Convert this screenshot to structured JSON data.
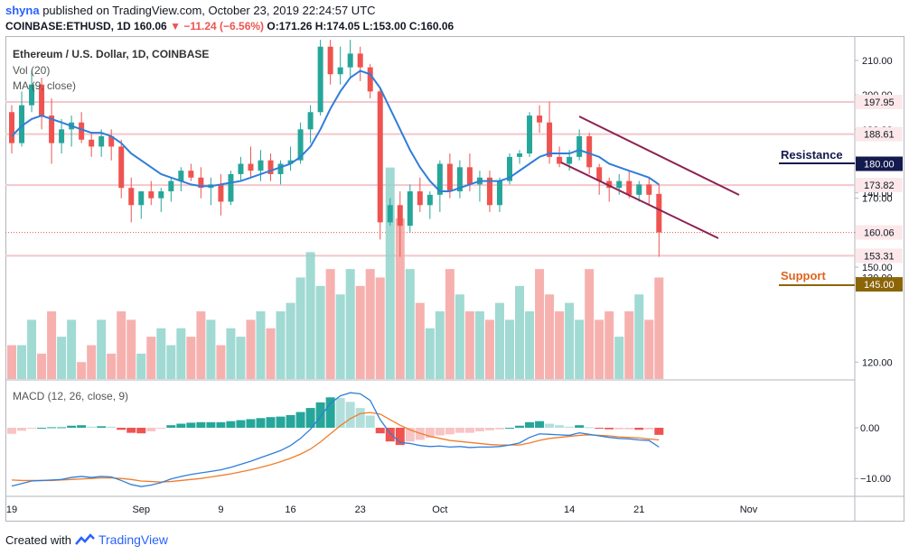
{
  "header": {
    "username": "shyna",
    "published_text": "published on TradingView.com, October 23, 2019 22:24:57 UTC",
    "symbol": "COINBASE:ETHUSD, 1D",
    "last": "160.06",
    "change": "−11.24 (−6.56%)",
    "ohlc": "O:171.26 H:174.05 L:153.00 C:160.06"
  },
  "legends": {
    "title": "Ethereum / U.S. Dollar, 1D, COINBASE",
    "vol": "Vol (20)",
    "ma": "MA (9, close)",
    "macd": "MACD (12, 26, close, 9)"
  },
  "annotations": {
    "resistance": "Resistance",
    "support": "Support"
  },
  "footer": {
    "created_with": "Created with",
    "brand": "TradingView"
  },
  "colors": {
    "up": "#26a69a",
    "down": "#ef5350",
    "ma": "#2f7ed8",
    "signal": "#f07d2b",
    "channel": "#8b2252",
    "resistance": "#131a4d",
    "support": "#8b6508"
  },
  "chart_data": {
    "type": "candlestick",
    "price_axis": {
      "ticks": [
        "210.00",
        "200.00",
        "190.00",
        "180.00",
        "170.00",
        "160.00",
        "150.00",
        "140.00",
        "130.00",
        "120.00"
      ],
      "ylim": [
        118,
        216
      ]
    },
    "macd_axis": {
      "ticks": [
        "0.00",
        "-10.00"
      ],
      "ylim": [
        -12.5,
        7.8
      ]
    },
    "x_ticks": [
      {
        "label": "19",
        "i": 0
      },
      {
        "label": "Sep",
        "i": 13
      },
      {
        "label": "9",
        "i": 21
      },
      {
        "label": "16",
        "i": 28
      },
      {
        "label": "23",
        "i": 35
      },
      {
        "label": "Oct",
        "i": 43
      },
      {
        "label": "14",
        "i": 56
      },
      {
        "label": "21",
        "i": 63
      },
      {
        "label": "Nov",
        "i": 74
      }
    ],
    "price_labels": [
      {
        "text": "197.95",
        "value": 197.95,
        "kind": "pink"
      },
      {
        "text": "188.61",
        "value": 188.61,
        "kind": "pink"
      },
      {
        "text": "180.00",
        "value": 180.0,
        "kind": "resistance"
      },
      {
        "text": "173.82",
        "value": 173.82,
        "kind": "pink"
      },
      {
        "text": "160.06",
        "value": 160.06,
        "kind": "current"
      },
      {
        "text": "153.31",
        "value": 153.31,
        "kind": "pink"
      },
      {
        "text": "145.00",
        "value": 145.0,
        "kind": "support"
      }
    ],
    "pink_lines": [
      197.95,
      188.61,
      173.82,
      153.31
    ],
    "candles": [
      [
        195,
        197,
        183,
        186
      ],
      [
        186,
        201,
        185,
        197
      ],
      [
        197,
        207,
        195,
        203
      ],
      [
        203,
        205,
        190,
        194
      ],
      [
        194,
        199,
        180,
        186
      ],
      [
        186,
        193,
        183,
        190
      ],
      [
        190,
        194,
        185,
        192
      ],
      [
        192,
        195,
        186,
        187
      ],
      [
        187,
        189,
        182,
        185
      ],
      [
        185,
        190,
        182,
        188
      ],
      [
        188,
        190,
        181,
        185
      ],
      [
        185,
        187,
        170,
        173
      ],
      [
        173,
        176,
        163,
        168
      ],
      [
        168,
        172,
        164,
        172
      ],
      [
        172,
        175,
        168,
        170
      ],
      [
        170,
        173,
        166,
        172
      ],
      [
        172,
        176,
        169,
        175
      ],
      [
        175,
        179,
        172,
        178
      ],
      [
        178,
        180,
        175,
        176
      ],
      [
        176,
        179,
        170,
        173
      ],
      [
        173,
        176,
        168,
        174
      ],
      [
        174,
        177,
        165,
        169
      ],
      [
        169,
        178,
        168,
        177
      ],
      [
        177,
        182,
        175,
        180
      ],
      [
        180,
        185,
        176,
        178
      ],
      [
        178,
        184,
        175,
        181
      ],
      [
        181,
        183,
        175,
        177
      ],
      [
        177,
        181,
        174,
        180
      ],
      [
        180,
        185,
        178,
        181
      ],
      [
        181,
        192,
        180,
        190
      ],
      [
        190,
        197,
        186,
        195
      ],
      [
        195,
        216,
        194,
        214
      ],
      [
        214,
        216,
        203,
        206
      ],
      [
        206,
        214,
        203,
        208
      ],
      [
        208,
        216,
        205,
        212
      ],
      [
        212,
        214,
        204,
        208
      ],
      [
        208,
        209,
        199,
        201
      ],
      [
        201,
        202,
        158,
        163
      ],
      [
        163,
        170,
        162,
        168
      ],
      [
        168,
        172,
        153,
        162
      ],
      [
        162,
        174,
        160,
        172
      ],
      [
        172,
        176,
        166,
        168
      ],
      [
        168,
        172,
        164,
        171
      ],
      [
        171,
        181,
        166,
        180
      ],
      [
        180,
        183,
        170,
        172
      ],
      [
        172,
        181,
        170,
        179
      ],
      [
        179,
        183,
        172,
        174
      ],
      [
        174,
        178,
        169,
        176
      ],
      [
        176,
        178,
        166,
        168
      ],
      [
        168,
        176,
        166,
        175
      ],
      [
        175,
        183,
        174,
        182
      ],
      [
        182,
        184,
        180,
        183
      ],
      [
        183,
        195,
        182,
        194
      ],
      [
        194,
        197,
        189,
        192
      ],
      [
        192,
        198,
        180,
        182
      ],
      [
        182,
        185,
        179,
        180
      ],
      [
        180,
        184,
        178,
        182
      ],
      [
        182,
        190,
        181,
        188
      ],
      [
        188,
        189,
        177,
        179
      ],
      [
        179,
        180,
        171,
        175
      ],
      [
        175,
        176,
        169,
        173
      ],
      [
        173,
        177,
        171,
        175
      ],
      [
        175,
        178,
        170,
        171
      ],
      [
        171,
        175,
        169,
        174
      ],
      [
        174,
        176,
        168,
        171
      ],
      [
        171.26,
        174.05,
        153,
        160.06
      ]
    ],
    "ma": [
      188,
      191,
      193,
      194,
      193,
      192,
      191,
      190,
      189,
      189,
      188,
      186,
      183,
      181,
      179,
      177,
      176,
      175,
      174,
      173.5,
      173.5,
      174,
      174.5,
      175,
      176,
      177,
      178,
      179,
      180,
      182,
      185,
      190,
      196,
      201,
      205,
      207,
      206,
      202,
      196,
      190,
      184,
      179,
      175,
      172,
      172,
      173,
      174,
      175,
      175,
      175,
      176,
      178,
      180,
      182,
      183,
      183,
      183,
      184,
      183,
      182,
      180,
      179,
      178,
      177,
      176,
      174
    ],
    "volume": [
      122,
      122,
      125,
      121,
      126,
      123,
      125,
      120,
      122,
      125,
      121,
      126,
      125,
      121,
      123,
      124,
      122,
      124,
      123,
      126,
      125,
      122,
      124,
      123,
      125,
      126,
      124,
      126,
      127,
      130,
      133,
      129,
      131,
      128,
      131,
      129,
      131,
      130,
      143,
      137,
      131,
      127,
      124,
      126,
      131,
      128,
      126,
      126,
      125,
      127,
      125,
      129,
      126,
      131,
      128,
      126,
      127,
      125,
      131,
      125,
      126,
      123,
      126,
      128,
      125,
      130
    ],
    "volume_ylim": [
      118,
      150
    ],
    "macd": [
      -11.5,
      -11,
      -10.5,
      -10.4,
      -10.3,
      -10.2,
      -9.8,
      -9.6,
      -9.8,
      -9.6,
      -9.7,
      -10.4,
      -11.2,
      -11.6,
      -11.3,
      -10.8,
      -10.1,
      -9.6,
      -9.2,
      -8.9,
      -8.6,
      -8.3,
      -7.8,
      -7.2,
      -6.6,
      -5.9,
      -5.2,
      -4.5,
      -3.5,
      -2.1,
      -0.3,
      2.2,
      4.8,
      6.3,
      6.9,
      6.7,
      5.4,
      1.6,
      -1.1,
      -2.9,
      -3.1,
      -3.5,
      -3.7,
      -3.6,
      -3.8,
      -3.7,
      -3.9,
      -3.8,
      -3.8,
      -3.7,
      -3.4,
      -3.0,
      -1.9,
      -1.2,
      -1.3,
      -1.4,
      -1.5,
      -1.0,
      -1.3,
      -1.6,
      -1.9,
      -2.1,
      -2.2,
      -2.4,
      -2.5,
      -3.8
    ],
    "signal": [
      -10.3,
      -10.4,
      -10.4,
      -10.4,
      -10.4,
      -10.3,
      -10.2,
      -10.1,
      -10.0,
      -9.9,
      -9.9,
      -10.0,
      -10.2,
      -10.5,
      -10.6,
      -10.7,
      -10.6,
      -10.4,
      -10.2,
      -10.0,
      -9.7,
      -9.4,
      -9.1,
      -8.7,
      -8.3,
      -7.8,
      -7.3,
      -6.7,
      -6.0,
      -5.2,
      -4.2,
      -2.8,
      -1.2,
      0.4,
      1.8,
      2.8,
      3.0,
      2.7,
      1.6,
      0.5,
      -0.4,
      -1.1,
      -1.7,
      -2.1,
      -2.5,
      -2.7,
      -2.9,
      -3.1,
      -3.3,
      -3.4,
      -3.4,
      -3.4,
      -3.0,
      -2.5,
      -2.1,
      -1.9,
      -1.7,
      -1.5,
      -1.4,
      -1.5,
      -1.6,
      -1.8,
      -1.9,
      -2.0,
      -2.2,
      -2.4
    ],
    "hist": [
      -1.2,
      -0.6,
      -0.1,
      0.0,
      0.1,
      0.1,
      0.4,
      0.5,
      0.2,
      0.3,
      0.2,
      -0.4,
      -1.0,
      -1.1,
      -0.7,
      -0.1,
      0.5,
      0.8,
      1.0,
      1.1,
      1.1,
      1.1,
      1.3,
      1.5,
      1.7,
      1.9,
      2.1,
      2.2,
      2.5,
      3.1,
      3.9,
      5.0,
      6.0,
      5.9,
      5.1,
      3.9,
      2.4,
      -1.1,
      -2.7,
      -3.4,
      -2.7,
      -2.4,
      -2.0,
      -1.5,
      -1.3,
      -1.0,
      -1.0,
      -0.7,
      -0.5,
      -0.3,
      0.0,
      0.4,
      1.1,
      1.3,
      0.8,
      0.5,
      0.2,
      0.5,
      0.1,
      -0.1,
      -0.3,
      -0.3,
      -0.3,
      -0.4,
      -0.3,
      -1.4
    ]
  }
}
